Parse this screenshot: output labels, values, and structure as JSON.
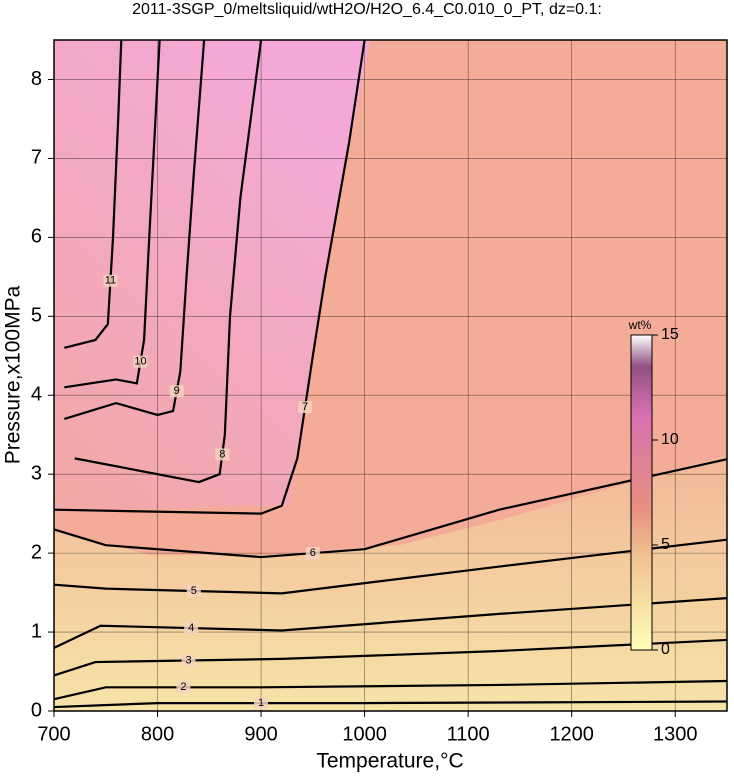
{
  "chart_data": {
    "type": "contour",
    "title": "2011-3SGP_0/meltsliquid/wtH2O/H2O_6.4_C0.010_0_PT, dz=0.1:",
    "xlabel": "Temperature,°C",
    "ylabel": "Pressure,x100MPa",
    "xlim": [
      700,
      1350
    ],
    "ylim": [
      0,
      8.5
    ],
    "xticks": [
      700,
      800,
      900,
      1000,
      1100,
      1200,
      1300
    ],
    "yticks": [
      0,
      1,
      2,
      3,
      4,
      5,
      6,
      7,
      8
    ],
    "grid": true,
    "line_color": "#000000",
    "contours": [
      {
        "level": 1,
        "x": [
          700,
          800,
          1000,
          1350
        ],
        "y": [
          0.05,
          0.1,
          0.1,
          0.12
        ]
      },
      {
        "level": 2,
        "x": [
          700,
          750,
          900,
          1130,
          1350
        ],
        "y": [
          0.15,
          0.3,
          0.3,
          0.33,
          0.38
        ]
      },
      {
        "level": 3,
        "x": [
          700,
          740,
          920,
          1130,
          1350
        ],
        "y": [
          0.45,
          0.62,
          0.66,
          0.76,
          0.9
        ]
      },
      {
        "level": 4,
        "x": [
          700,
          745,
          920,
          1130,
          1350
        ],
        "y": [
          0.8,
          1.08,
          1.02,
          1.23,
          1.43
        ]
      },
      {
        "level": 5,
        "x": [
          700,
          750,
          920,
          1130,
          1350
        ],
        "y": [
          1.6,
          1.55,
          1.49,
          1.83,
          2.17
        ]
      },
      {
        "level": 6,
        "x": [
          700,
          750,
          900,
          1000,
          1130,
          1350
        ],
        "y": [
          2.3,
          2.1,
          1.95,
          2.05,
          2.55,
          3.19
        ]
      },
      {
        "level": 7,
        "x": [
          700,
          900,
          920,
          935,
          950,
          962,
          985,
          1000
        ],
        "y": [
          2.55,
          2.5,
          2.6,
          3.2,
          4.5,
          5.5,
          7.2,
          8.5
        ]
      },
      {
        "level": 8,
        "x": [
          720,
          840,
          860,
          865,
          870,
          880,
          900
        ],
        "y": [
          3.2,
          2.9,
          3.0,
          3.5,
          5.0,
          6.5,
          8.5
        ]
      },
      {
        "level": 9,
        "x": [
          710,
          760,
          800,
          815,
          822,
          828,
          835,
          845
        ],
        "y": [
          3.7,
          3.9,
          3.75,
          3.8,
          4.3,
          5.5,
          6.8,
          8.5
        ]
      },
      {
        "level": 10,
        "x": [
          710,
          760,
          780,
          787,
          792,
          798,
          802
        ],
        "y": [
          4.1,
          4.2,
          4.15,
          4.7,
          6.0,
          7.5,
          8.5
        ]
      },
      {
        "level": 11,
        "x": [
          710,
          740,
          752,
          757,
          762,
          765
        ],
        "y": [
          4.6,
          4.7,
          4.9,
          6.0,
          7.5,
          8.5
        ]
      }
    ],
    "colorbar_label": "wt%",
    "colorbar_lim": [
      0,
      15
    ],
    "colorbar_ticks": [
      0,
      5,
      10,
      15
    ]
  }
}
